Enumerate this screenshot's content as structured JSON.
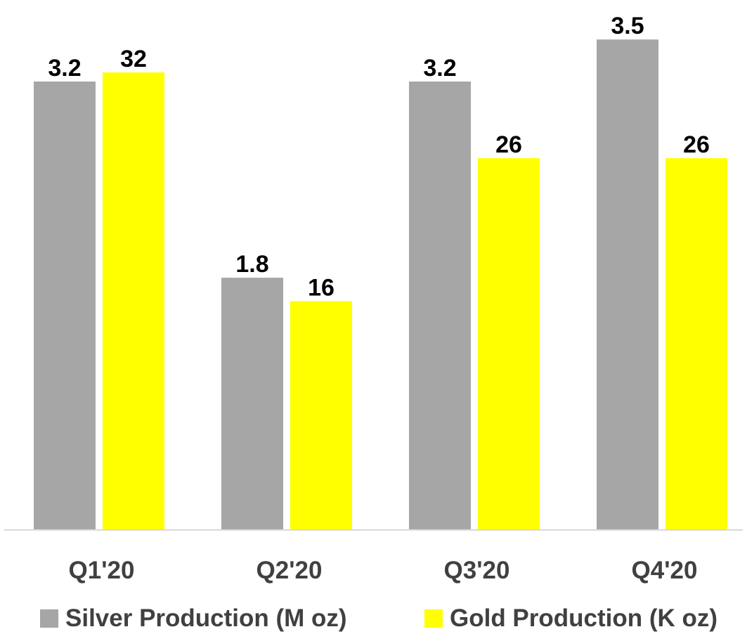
{
  "chart_data": {
    "type": "bar",
    "categories": [
      "Q1'20",
      "Q2'20",
      "Q3'20",
      "Q4'20"
    ],
    "series": [
      {
        "name": "Silver Production (M oz)",
        "color": "#a6a6a6",
        "values": [
          3.2,
          1.8,
          3.2,
          3.5
        ],
        "labels": [
          "3.2",
          "1.8",
          "3.2",
          "3.5"
        ]
      },
      {
        "name": "Gold Production (K oz)",
        "color": "#ffff00",
        "values": [
          32,
          16,
          26,
          26
        ],
        "labels": [
          "32",
          "16",
          "26",
          "26"
        ]
      }
    ],
    "title": "",
    "xlabel": "",
    "ylabel": "",
    "legend_position": "bottom",
    "grid": false,
    "axis_color": "#d9d9d9",
    "text_color": "#000000",
    "tick_label_color": "#404040"
  }
}
